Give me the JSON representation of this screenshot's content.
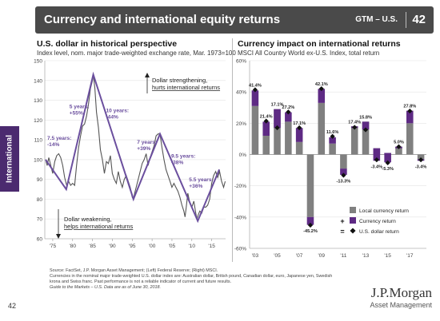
{
  "header": {
    "title": "Currency and international equity returns",
    "subtitle": "GTM – U.S.",
    "page": "42"
  },
  "side_tab": {
    "label": "International"
  },
  "left_panel": {
    "title": "U.S. dollar in historical perspective",
    "subtitle": "Index level, nom. major trade-weighted exchange rate, Mar. 1973=100",
    "arrow_up_line1": "Dollar strengthening,",
    "arrow_up_line2": "hurts international returns",
    "arrow_down_line1": "Dollar weakening,",
    "arrow_down_line2": "helps international returns"
  },
  "right_panel": {
    "title": "Currency impact on international returns",
    "subtitle": "MSCI All Country World ex-U.S. Index, total return"
  },
  "footnotes": {
    "line1": "Source: FactSet, J.P. Morgan Asset Management; (Left) Federal Reserve; (Right) MSCI.",
    "line2": "Currencies in the nominal major trade-weighted U.S. dollar index are: Australian dollar, British pound, Canadian dollar, euro, Japanese yen, Swedish",
    "line3": "krona and Swiss franc. Past performance is not a reliable indicator of current and future results.",
    "line4": "Guide to the Markets – U.S. Data are as of June 30, 2018."
  },
  "logo": {
    "name": "J.P.Morgan",
    "tagline": "Asset Management"
  },
  "page_number": "42",
  "colors": {
    "header_bg": "#4a4a4a",
    "purple": "#5e2a84",
    "gray_bar": "#808080",
    "line": "#555555",
    "trend": "#6b4f9e",
    "annotation": "#6b4f9e"
  },
  "chart_data": [
    {
      "type": "line",
      "title": "U.S. dollar in historical perspective",
      "subtitle": "Index level, nom. major trade-weighted exchange rate, Mar. 1973=100",
      "xlim": [
        1973,
        2018.5
      ],
      "ylim": [
        60,
        150
      ],
      "yticks": [
        60,
        70,
        80,
        90,
        100,
        110,
        120,
        130,
        140,
        150
      ],
      "xtick_values": [
        1975,
        1980,
        1985,
        1990,
        1995,
        2000,
        2005,
        2010,
        2015
      ],
      "xtick_labels": [
        "'75",
        "'80",
        "'85",
        "'90",
        "'95",
        "'00",
        "'05",
        "'10",
        "'15"
      ],
      "series": [
        {
          "x": [
            1973.2,
            1973.6,
            1974.0,
            1974.5,
            1975.0,
            1975.5,
            1976.0,
            1976.5,
            1977.0,
            1977.5,
            1978.0,
            1978.5,
            1979.0,
            1979.5,
            1980.0,
            1980.5,
            1981.0,
            1981.5,
            1982.0,
            1982.5,
            1983.0,
            1983.5,
            1984.0,
            1984.5,
            1985.0,
            1985.2,
            1985.6,
            1986.0,
            1986.5,
            1987.0,
            1987.5,
            1988.0,
            1988.5,
            1989.0,
            1989.5,
            1990.0,
            1990.5,
            1991.0,
            1991.5,
            1992.0,
            1992.5,
            1993.0,
            1993.5,
            1994.0,
            1994.5,
            1995.0,
            1995.3,
            1995.6,
            1996.0,
            1996.5,
            1997.0,
            1997.5,
            1998.0,
            1998.5,
            1999.0,
            1999.5,
            2000.0,
            2000.5,
            2001.0,
            2001.5,
            2002.0,
            2002.5,
            2003.0,
            2003.5,
            2004.0,
            2004.5,
            2005.0,
            2005.5,
            2006.0,
            2006.5,
            2007.0,
            2007.5,
            2008.0,
            2008.3,
            2008.6,
            2009.0,
            2009.5,
            2010.0,
            2010.5,
            2011.0,
            2011.3,
            2011.6,
            2012.0,
            2012.5,
            2013.0,
            2013.5,
            2014.0,
            2014.5,
            2015.0,
            2015.5,
            2016.0,
            2016.5,
            2017.0,
            2017.5,
            2018.0,
            2018.4
          ],
          "y": [
            100,
            97,
            101,
            97,
            93,
            99,
            102,
            103,
            101,
            97,
            91,
            87,
            89,
            87,
            88,
            87,
            97,
            106,
            112,
            117,
            118,
            122,
            128,
            136,
            140,
            143,
            136,
            124,
            116,
            105,
            100,
            93,
            99,
            98,
            102,
            93,
            90,
            88,
            94,
            89,
            86,
            90,
            92,
            89,
            86,
            81,
            80,
            83,
            86,
            90,
            94,
            98,
            100,
            103,
            97,
            101,
            104,
            107,
            112,
            113,
            113,
            106,
            100,
            95,
            92,
            89,
            86,
            88,
            86,
            84,
            81,
            77,
            74,
            71,
            76,
            83,
            78,
            76,
            79,
            73,
            70,
            72,
            74,
            73,
            76,
            76,
            77,
            80,
            88,
            92,
            94,
            91,
            94,
            89,
            86,
            89
          ]
        }
      ],
      "trend_points": [
        {
          "x": 1973.2,
          "y": 100
        },
        {
          "x": 1978.4,
          "y": 85
        },
        {
          "x": 1985.2,
          "y": 143
        },
        {
          "x": 1995.3,
          "y": 80
        },
        {
          "x": 2002.0,
          "y": 113
        },
        {
          "x": 2011.5,
          "y": 69
        },
        {
          "x": 2016.9,
          "y": 95
        }
      ],
      "annotations": [
        {
          "lines": [
            "7.5 years:",
            "-14%"
          ],
          "x": 1973.6,
          "y": 110
        },
        {
          "lines": [
            "5 years:",
            "+55%"
          ],
          "x": 1979.2,
          "y": 126
        },
        {
          "lines": [
            "10 years:",
            "-44%"
          ],
          "x": 1988.4,
          "y": 124
        },
        {
          "lines": [
            "7 years:",
            "+39%"
          ],
          "x": 1996.2,
          "y": 108
        },
        {
          "lines": [
            "9.5 years:",
            "-38%"
          ],
          "x": 2004.8,
          "y": 101
        },
        {
          "lines": [
            "5.5 years:",
            "+36%"
          ],
          "x": 2009.3,
          "y": 89
        }
      ]
    },
    {
      "type": "bar",
      "title": "Currency impact on international returns",
      "subtitle": "MSCI All Country World ex-U.S. Index, total return",
      "categories": [
        "2003",
        "2004",
        "2005",
        "2006",
        "2007",
        "2008",
        "2009",
        "2010",
        "2011",
        "2012",
        "2013",
        "2014",
        "2015",
        "2016",
        "2017",
        "2018"
      ],
      "xtick_labels": [
        "'03",
        "'05",
        "'07",
        "'09",
        "'11",
        "'13",
        "'15",
        "'17"
      ],
      "ylim": [
        -60,
        60
      ],
      "yticks": [
        -60,
        -40,
        -20,
        0,
        20,
        40,
        60
      ],
      "ytick_labels": [
        "-60%",
        "-40%",
        "-20%",
        "0%",
        "20%",
        "40%",
        "60%"
      ],
      "series": [
        {
          "name": "Local currency return",
          "values": [
            31,
            12,
            29,
            21,
            8,
            -40,
            33,
            7,
            -9,
            18,
            21,
            4,
            1,
            5,
            20,
            -3
          ]
        },
        {
          "name": "Currency return",
          "values": [
            10,
            9,
            -12,
            6,
            9,
            -5,
            9,
            4,
            -4,
            -1,
            -5,
            -8,
            -6,
            -1,
            8,
            -1
          ]
        },
        {
          "name": "U.S. dollar return",
          "values": [
            41.4,
            21.4,
            17.1,
            27.2,
            17.1,
            -45.2,
            42.1,
            11.6,
            -13.3,
            17.4,
            15.8,
            -3.4,
            -5.3,
            5.0,
            27.8,
            -3.4
          ]
        }
      ],
      "data_labels": [
        "41.4%",
        "21.4%",
        "17.1%",
        "27.2%",
        "17.1%",
        "-45.2%",
        "42.1%",
        "11.6%",
        "-13.3%",
        "17.4%",
        "15.8%",
        "-3.4%",
        "-5.3%",
        "5.0%",
        "27.8%",
        "-3.4%"
      ],
      "legend": {
        "position": "bottom-right",
        "entries": [
          {
            "symbol": "",
            "label": "Local currency return"
          },
          {
            "symbol": "+",
            "label": "Currency return"
          },
          {
            "symbol": "=",
            "label": "U.S. dollar return"
          }
        ]
      }
    }
  ]
}
